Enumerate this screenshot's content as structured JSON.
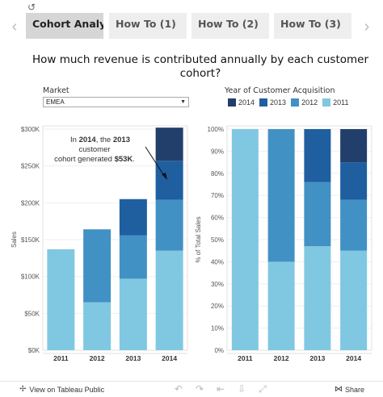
{
  "topbar": {
    "refresh_icon": "↺",
    "tabs": [
      {
        "label": "Cohort Analysis",
        "active": true
      },
      {
        "label": "How To (1)",
        "active": false
      },
      {
        "label": "How To (2)",
        "active": false
      },
      {
        "label": "How To (3)",
        "active": false
      }
    ]
  },
  "title": "How much revenue is contributed annually by each customer cohort?",
  "filter": {
    "label": "Market",
    "value": "EMEA"
  },
  "legend": {
    "title": "Year of Customer Acquisition",
    "items": [
      {
        "label": "2014",
        "color": "#223f6b"
      },
      {
        "label": "2013",
        "color": "#1f5fa0"
      },
      {
        "label": "2012",
        "color": "#4291c4"
      },
      {
        "label": "2011",
        "color": "#80c8e2"
      }
    ]
  },
  "annotation": {
    "line1_prefix": "In ",
    "line1_year": "2014",
    "line1_mid": ", the ",
    "line1_cohort": "2013",
    "line2": "customer",
    "line3_prefix": "cohort generated ",
    "line3_value": "$53K",
    "line3_suffix": "."
  },
  "chart_data": [
    {
      "type": "bar",
      "stacked": true,
      "categories": [
        "2011",
        "2012",
        "2013",
        "2014"
      ],
      "ylabel": "Sales",
      "ylim": [
        0,
        300000
      ],
      "yticks": [
        "$0K",
        "$50K",
        "$100K",
        "$150K",
        "$200K",
        "$250K",
        "$300K"
      ],
      "series": [
        {
          "name": "2011",
          "color": "#80c8e2",
          "values": [
            137000,
            65000,
            97000,
            135000
          ]
        },
        {
          "name": "2012",
          "color": "#4291c4",
          "values": [
            0,
            99000,
            59000,
            69000
          ]
        },
        {
          "name": "2013",
          "color": "#1f5fa0",
          "values": [
            0,
            0,
            49000,
            53000
          ]
        },
        {
          "name": "2014",
          "color": "#223f6b",
          "values": [
            0,
            0,
            0,
            45000
          ]
        }
      ]
    },
    {
      "type": "bar",
      "stacked": true,
      "categories": [
        "2011",
        "2012",
        "2013",
        "2014"
      ],
      "ylabel": "% of Total Sales",
      "ylim": [
        0,
        100
      ],
      "yticks": [
        "0%",
        "10%",
        "20%",
        "30%",
        "40%",
        "50%",
        "60%",
        "70%",
        "80%",
        "90%",
        "100%"
      ],
      "series": [
        {
          "name": "2011",
          "color": "#80c8e2",
          "values": [
            100,
            40,
            47,
            45
          ]
        },
        {
          "name": "2012",
          "color": "#4291c4",
          "values": [
            0,
            60,
            29,
            23
          ]
        },
        {
          "name": "2013",
          "color": "#1f5fa0",
          "values": [
            0,
            0,
            24,
            17
          ]
        },
        {
          "name": "2014",
          "color": "#223f6b",
          "values": [
            0,
            0,
            0,
            15
          ]
        }
      ]
    }
  ],
  "footer": {
    "view_label": "View on Tableau Public",
    "icons": [
      "undo-icon",
      "redo-icon",
      "revert-icon",
      "download-icon",
      "fullscreen-icon"
    ],
    "share_label": "Share"
  }
}
